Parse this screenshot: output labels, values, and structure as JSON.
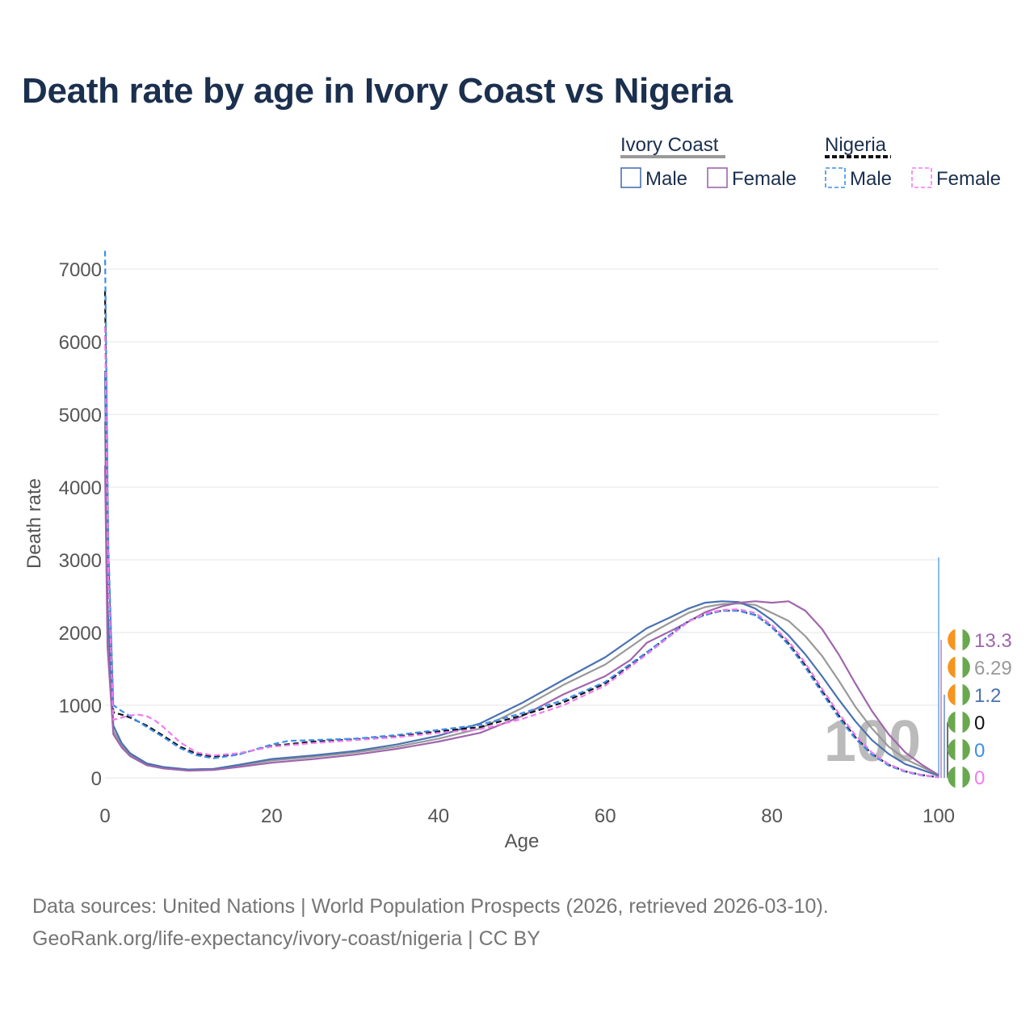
{
  "title": "Death rate by age in Ivory Coast vs Nigeria",
  "legend": {
    "groups": [
      {
        "label": "Ivory Coast",
        "male": "Male",
        "female": "Female"
      },
      {
        "label": "Nigeria",
        "male": "Male",
        "female": "Female"
      }
    ]
  },
  "colors": {
    "ic_male": "#4a72b0",
    "ic_female": "#a066ac",
    "ic_total": "#999999",
    "ng_male": "#3d8ee8",
    "ng_female": "#f07cf0",
    "ng_total": "#111111",
    "flag_orange": "#f7941d",
    "flag_green": "#6aa84f"
  },
  "chart_data": {
    "type": "line",
    "title": "Death rate by age in Ivory Coast vs Nigeria",
    "xlabel": "Age",
    "ylabel": "Death rate",
    "xlim": [
      0,
      100
    ],
    "ylim": [
      0,
      7000
    ],
    "x_ticks": [
      0,
      20,
      40,
      60,
      80,
      100
    ],
    "y_ticks": [
      0,
      1000,
      2000,
      3000,
      4000,
      5000,
      6000,
      7000
    ],
    "grid": true,
    "age_marker": "100",
    "series": [
      {
        "key": "ic_total",
        "name": "Ivory Coast",
        "style": "solid",
        "end_value": "6.29",
        "points": [
          [
            0,
            4900
          ],
          [
            0.3,
            2000
          ],
          [
            1,
            650
          ],
          [
            2,
            450
          ],
          [
            3,
            320
          ],
          [
            5,
            190
          ],
          [
            7,
            140
          ],
          [
            10,
            110
          ],
          [
            13,
            120
          ],
          [
            16,
            170
          ],
          [
            20,
            240
          ],
          [
            25,
            290
          ],
          [
            30,
            350
          ],
          [
            35,
            430
          ],
          [
            40,
            540
          ],
          [
            45,
            680
          ],
          [
            50,
            960
          ],
          [
            55,
            1280
          ],
          [
            60,
            1560
          ],
          [
            63,
            1800
          ],
          [
            65,
            1960
          ],
          [
            68,
            2150
          ],
          [
            70,
            2270
          ],
          [
            72,
            2350
          ],
          [
            74,
            2390
          ],
          [
            76,
            2400
          ],
          [
            78,
            2380
          ],
          [
            80,
            2270
          ],
          [
            82,
            2160
          ],
          [
            84,
            1950
          ],
          [
            86,
            1680
          ],
          [
            88,
            1340
          ],
          [
            90,
            980
          ],
          [
            92,
            680
          ],
          [
            94,
            430
          ],
          [
            96,
            260
          ],
          [
            98,
            150
          ],
          [
            100,
            40
          ]
        ]
      },
      {
        "key": "ic_male",
        "name": "Male",
        "style": "solid",
        "end_value": "1.2",
        "points": [
          [
            0,
            5600
          ],
          [
            0.3,
            2400
          ],
          [
            1,
            720
          ],
          [
            2,
            480
          ],
          [
            3,
            340
          ],
          [
            5,
            200
          ],
          [
            7,
            150
          ],
          [
            10,
            115
          ],
          [
            13,
            125
          ],
          [
            16,
            180
          ],
          [
            20,
            260
          ],
          [
            25,
            310
          ],
          [
            30,
            370
          ],
          [
            35,
            460
          ],
          [
            40,
            580
          ],
          [
            45,
            750
          ],
          [
            50,
            1030
          ],
          [
            55,
            1350
          ],
          [
            60,
            1660
          ],
          [
            63,
            1900
          ],
          [
            65,
            2060
          ],
          [
            68,
            2220
          ],
          [
            70,
            2330
          ],
          [
            72,
            2410
          ],
          [
            74,
            2430
          ],
          [
            76,
            2420
          ],
          [
            78,
            2330
          ],
          [
            80,
            2170
          ],
          [
            82,
            1960
          ],
          [
            84,
            1700
          ],
          [
            86,
            1400
          ],
          [
            88,
            1080
          ],
          [
            90,
            780
          ],
          [
            92,
            520
          ],
          [
            94,
            330
          ],
          [
            96,
            190
          ],
          [
            98,
            110
          ],
          [
            100,
            30
          ]
        ]
      },
      {
        "key": "ic_female",
        "name": "Female",
        "style": "solid",
        "end_value": "13.3",
        "points": [
          [
            0,
            4300
          ],
          [
            0.3,
            1800
          ],
          [
            1,
            600
          ],
          [
            2,
            420
          ],
          [
            3,
            300
          ],
          [
            5,
            175
          ],
          [
            7,
            130
          ],
          [
            10,
            100
          ],
          [
            13,
            110
          ],
          [
            16,
            150
          ],
          [
            20,
            210
          ],
          [
            25,
            260
          ],
          [
            30,
            320
          ],
          [
            35,
            400
          ],
          [
            40,
            500
          ],
          [
            45,
            620
          ],
          [
            50,
            850
          ],
          [
            55,
            1150
          ],
          [
            60,
            1400
          ],
          [
            63,
            1620
          ],
          [
            65,
            1860
          ],
          [
            68,
            2030
          ],
          [
            70,
            2150
          ],
          [
            72,
            2280
          ],
          [
            74,
            2360
          ],
          [
            76,
            2410
          ],
          [
            78,
            2430
          ],
          [
            80,
            2410
          ],
          [
            82,
            2430
          ],
          [
            84,
            2300
          ],
          [
            86,
            2050
          ],
          [
            88,
            1700
          ],
          [
            90,
            1300
          ],
          [
            92,
            920
          ],
          [
            94,
            600
          ],
          [
            96,
            350
          ],
          [
            98,
            180
          ],
          [
            100,
            40
          ]
        ]
      },
      {
        "key": "ng_total",
        "name": "Nigeria",
        "style": "dashed",
        "end_value": "0",
        "points": [
          [
            0,
            6700
          ],
          [
            0.4,
            3000
          ],
          [
            1,
            900
          ],
          [
            2,
            870
          ],
          [
            3,
            830
          ],
          [
            5,
            720
          ],
          [
            7,
            580
          ],
          [
            9,
            430
          ],
          [
            11,
            330
          ],
          [
            13,
            290
          ],
          [
            16,
            330
          ],
          [
            20,
            440
          ],
          [
            25,
            500
          ],
          [
            30,
            530
          ],
          [
            35,
            570
          ],
          [
            40,
            640
          ],
          [
            45,
            700
          ],
          [
            50,
            860
          ],
          [
            55,
            1040
          ],
          [
            60,
            1300
          ],
          [
            65,
            1720
          ],
          [
            70,
            2160
          ],
          [
            72,
            2250
          ],
          [
            74,
            2300
          ],
          [
            76,
            2300
          ],
          [
            78,
            2240
          ],
          [
            80,
            2080
          ],
          [
            82,
            1850
          ],
          [
            84,
            1550
          ],
          [
            86,
            1200
          ],
          [
            88,
            860
          ],
          [
            90,
            560
          ],
          [
            92,
            330
          ],
          [
            94,
            180
          ],
          [
            96,
            90
          ],
          [
            98,
            40
          ],
          [
            100,
            10
          ]
        ]
      },
      {
        "key": "ng_male",
        "name": "Male",
        "style": "dashed",
        "end_value": "0",
        "points": [
          [
            0,
            7250
          ],
          [
            0.4,
            3200
          ],
          [
            1,
            1000
          ],
          [
            2,
            920
          ],
          [
            3,
            850
          ],
          [
            5,
            700
          ],
          [
            7,
            560
          ],
          [
            9,
            410
          ],
          [
            11,
            310
          ],
          [
            13,
            270
          ],
          [
            16,
            320
          ],
          [
            20,
            460
          ],
          [
            22,
            510
          ],
          [
            25,
            520
          ],
          [
            30,
            540
          ],
          [
            35,
            590
          ],
          [
            40,
            660
          ],
          [
            45,
            730
          ],
          [
            50,
            890
          ],
          [
            55,
            1070
          ],
          [
            60,
            1320
          ],
          [
            65,
            1730
          ],
          [
            70,
            2160
          ],
          [
            72,
            2240
          ],
          [
            74,
            2300
          ],
          [
            76,
            2300
          ],
          [
            78,
            2240
          ],
          [
            80,
            2070
          ],
          [
            82,
            1830
          ],
          [
            84,
            1520
          ],
          [
            86,
            1170
          ],
          [
            88,
            830
          ],
          [
            90,
            540
          ],
          [
            92,
            320
          ],
          [
            94,
            170
          ],
          [
            96,
            85
          ],
          [
            98,
            35
          ],
          [
            100,
            10
          ]
        ]
      },
      {
        "key": "ng_female",
        "name": "Female",
        "style": "dashed",
        "end_value": "0",
        "points": [
          [
            0,
            6200
          ],
          [
            0.4,
            2800
          ],
          [
            1,
            800
          ],
          [
            2,
            830
          ],
          [
            3,
            860
          ],
          [
            4,
            870
          ],
          [
            5,
            850
          ],
          [
            6,
            790
          ],
          [
            7,
            700
          ],
          [
            9,
            490
          ],
          [
            11,
            350
          ],
          [
            13,
            310
          ],
          [
            16,
            340
          ],
          [
            20,
            430
          ],
          [
            25,
            480
          ],
          [
            30,
            520
          ],
          [
            35,
            560
          ],
          [
            40,
            620
          ],
          [
            45,
            670
          ],
          [
            50,
            810
          ],
          [
            55,
            1000
          ],
          [
            60,
            1270
          ],
          [
            65,
            1700
          ],
          [
            70,
            2150
          ],
          [
            72,
            2260
          ],
          [
            74,
            2310
          ],
          [
            76,
            2320
          ],
          [
            78,
            2270
          ],
          [
            80,
            2100
          ],
          [
            82,
            1880
          ],
          [
            84,
            1580
          ],
          [
            86,
            1230
          ],
          [
            88,
            890
          ],
          [
            90,
            590
          ],
          [
            92,
            350
          ],
          [
            94,
            190
          ],
          [
            96,
            95
          ],
          [
            98,
            40
          ],
          [
            100,
            10
          ]
        ]
      }
    ],
    "end_labels": [
      {
        "text": "13.3",
        "color": "#a066ac",
        "flag": "ivory-coast"
      },
      {
        "text": "6.29",
        "color": "#999999",
        "flag": "ivory-coast"
      },
      {
        "text": "1.2",
        "color": "#4a72b0",
        "flag": "ivory-coast"
      },
      {
        "text": "0",
        "color": "#111111",
        "flag": "nigeria"
      },
      {
        "text": "0",
        "color": "#3d8ee8",
        "flag": "nigeria"
      },
      {
        "text": "0",
        "color": "#f07cf0",
        "flag": "nigeria"
      }
    ]
  },
  "footer": {
    "line1": "Data sources: United Nations | World Population Prospects (2026, retrieved 2026-03-10).",
    "line2": "GeoRank.org/life-expectancy/ivory-coast/nigeria | CC BY"
  }
}
